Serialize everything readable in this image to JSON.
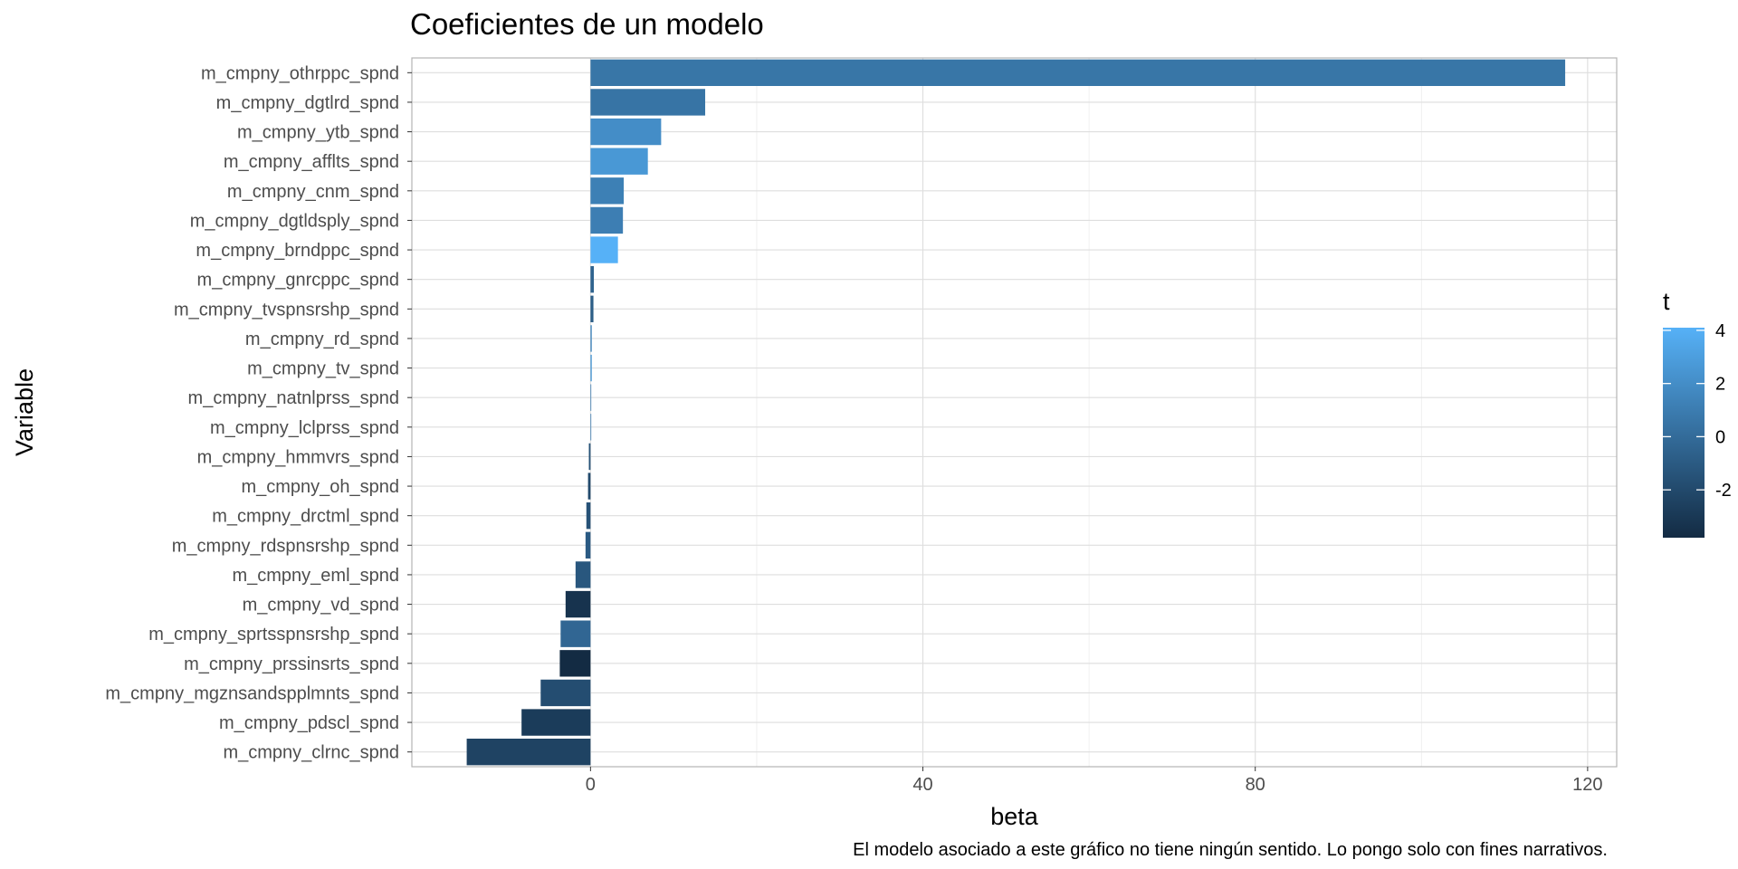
{
  "chart_data": {
    "type": "bar",
    "orientation": "horizontal",
    "title": "Coeficientes de un modelo",
    "xlabel": "beta",
    "ylabel": "Variable",
    "caption": "El modelo asociado a este gráfico no tiene ningún sentido. Lo pongo solo con fines narrativos.",
    "xlim": [
      -21.5,
      123.5
    ],
    "xticks": [
      0,
      40,
      80,
      120
    ],
    "grid": true,
    "legend": {
      "title": "t",
      "position": "right",
      "ticks": [
        4,
        2,
        0,
        -2
      ],
      "range": [
        -3.8,
        4.1
      ],
      "colors": {
        "low": "#132B43",
        "high": "#56B1F7"
      }
    },
    "categories": [
      "m_cmpny_othrppc_spnd",
      "m_cmpny_dgtlrd_spnd",
      "m_cmpny_ytb_spnd",
      "m_cmpny_afflts_spnd",
      "m_cmpny_cnm_spnd",
      "m_cmpny_dgtldsply_spnd",
      "m_cmpny_brndppc_spnd",
      "m_cmpny_gnrcppc_spnd",
      "m_cmpny_tvspnsrshp_spnd",
      "m_cmpny_rd_spnd",
      "m_cmpny_tv_spnd",
      "m_cmpny_natnlprss_spnd",
      "m_cmpny_lclprss_spnd",
      "m_cmpny_hmmvrs_spnd",
      "m_cmpny_oh_spnd",
      "m_cmpny_drctml_spnd",
      "m_cmpny_rdspnsrshp_spnd",
      "m_cmpny_eml_spnd",
      "m_cmpny_vd_spnd",
      "m_cmpny_sprtsspnsrshp_spnd",
      "m_cmpny_prssinsrts_spnd",
      "m_cmpny_mgznsandspplmnts_spnd",
      "m_cmpny_pdscl_spnd",
      "m_cmpny_clrnc_spnd"
    ],
    "values": [
      117.3,
      13.8,
      8.5,
      6.9,
      4.0,
      3.9,
      3.3,
      0.4,
      0.35,
      0.15,
      0.15,
      0.05,
      0.02,
      -0.2,
      -0.3,
      -0.5,
      -0.6,
      -1.8,
      -3.0,
      -3.6,
      -3.7,
      -6.0,
      -8.3,
      -14.9
    ],
    "t_values": [
      0.6,
      0.5,
      2.0,
      2.6,
      1.2,
      1.1,
      4.1,
      -0.5,
      -0.8,
      1.5,
      2.5,
      1.0,
      1.0,
      -1.5,
      -2.0,
      -1.5,
      -1.0,
      -1.2,
      -3.3,
      -0.3,
      -3.8,
      -1.8,
      -2.8,
      -2.4
    ]
  }
}
